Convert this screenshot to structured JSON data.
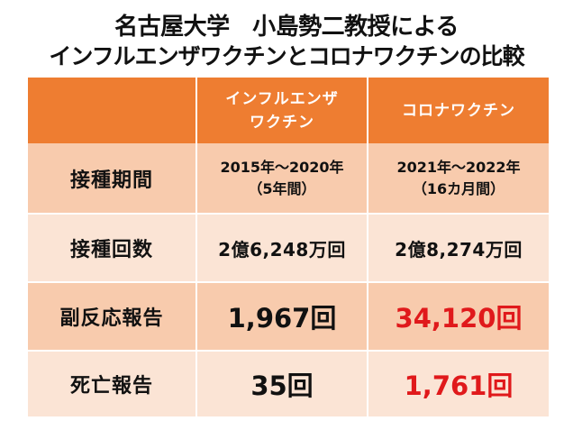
{
  "title": {
    "line1": "名古屋大学　小島勢二教授による",
    "line2": "インフルエンザワクチンとコロナワクチンの比較"
  },
  "table": {
    "header": {
      "influenza_line1": "インフルエンザ",
      "influenza_line2": "ワクチン",
      "corona": "コロナワクチン"
    },
    "rows": [
      {
        "label": "接種期間",
        "influenza_line1": "2015年～2020年",
        "influenza_line2": "（5年間）",
        "corona_line1": "2021年～2022年",
        "corona_line2": "（16カ月間）"
      },
      {
        "label": "接種回数",
        "influenza": "2億6,248万回",
        "corona": "2億8,274万回"
      },
      {
        "label": "副反応報告",
        "influenza": "1,967回",
        "corona": "34,120回"
      },
      {
        "label": "死亡報告",
        "influenza": "35回",
        "corona": "1,761回"
      }
    ]
  },
  "colors": {
    "header_bg": "#ee7d31",
    "row_dark": "#f8cbad",
    "row_light": "#fbe4d5",
    "highlight_red": "#e0191b"
  }
}
